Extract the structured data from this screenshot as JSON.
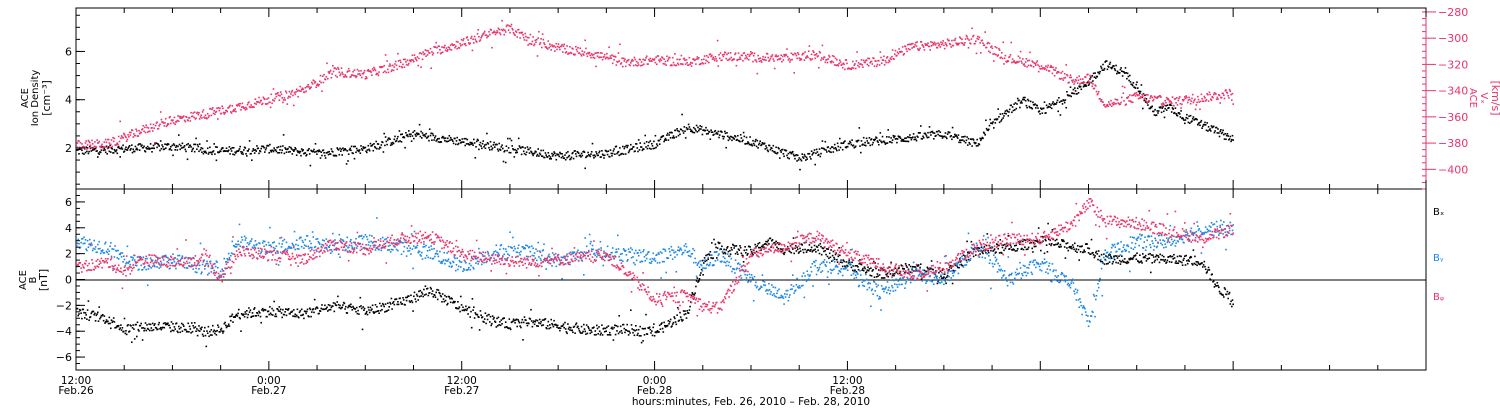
{
  "chart_data": [
    {
      "type": "scatter",
      "panel": "top",
      "left_axis": {
        "label_lines": [
          "ACE",
          "Ion Density"
        ],
        "unit": "[cm⁻³]",
        "ylim": [
          0.3,
          7.8
        ],
        "ticks": [
          2,
          4,
          6
        ],
        "color": "#000000"
      },
      "right_axis": {
        "label_lines": [
          "ACE",
          "Vₓ"
        ],
        "unit": "[km/s]",
        "ylim": [
          -415,
          -277
        ],
        "ticks": [
          -280,
          -300,
          -320,
          -340,
          -360,
          -380,
          -400
        ],
        "color": "#e8356a"
      },
      "series": [
        {
          "axis": "left",
          "color": "#000000",
          "x": [
            0,
            3,
            6,
            9,
            12,
            15,
            18,
            21,
            24,
            27,
            30,
            33,
            36,
            38,
            40,
            42,
            45,
            48,
            51,
            54,
            56,
            57,
            58,
            59,
            60,
            62,
            63,
            64,
            65,
            66,
            67,
            68,
            69,
            70,
            72
          ],
          "y": [
            1.9,
            2.0,
            2.1,
            1.9,
            2.0,
            1.8,
            2.0,
            2.6,
            2.3,
            2.0,
            1.7,
            1.8,
            2.2,
            2.9,
            2.6,
            2.3,
            1.6,
            2.2,
            2.4,
            2.6,
            2.2,
            3.0,
            3.6,
            4.0,
            3.5,
            4.3,
            4.8,
            5.5,
            5.2,
            4.6,
            3.5,
            3.7,
            3.3,
            3.0,
            2.4
          ]
        },
        {
          "axis": "right",
          "color": "#e8356a",
          "x": [
            0,
            2,
            4,
            6,
            8,
            10,
            12,
            14,
            16,
            18,
            20,
            22,
            24,
            26,
            27,
            28,
            30,
            32,
            34,
            36,
            38,
            40,
            42,
            44,
            46,
            48,
            50,
            52,
            53,
            54,
            56,
            57,
            58,
            60,
            61,
            62,
            63,
            64,
            65,
            66,
            67,
            68,
            70,
            72
          ],
          "y": [
            -381,
            -380,
            -370,
            -362,
            -357,
            -352,
            -346,
            -340,
            -325,
            -327,
            -320,
            -310,
            -303,
            -295,
            -292,
            -300,
            -307,
            -311,
            -318,
            -316,
            -318,
            -313,
            -314,
            -315,
            -312,
            -320,
            -317,
            -306,
            -305,
            -304,
            -300,
            -308,
            -315,
            -320,
            -326,
            -332,
            -330,
            -350,
            -348,
            -344,
            -346,
            -348,
            -345,
            -341
          ]
        }
      ]
    },
    {
      "type": "scatter",
      "panel": "bottom",
      "left_axis": {
        "label_lines": [
          "ACE",
          "B"
        ],
        "unit": "[nT]",
        "ylim": [
          -7,
          7
        ],
        "ticks": [
          -6,
          -4,
          -2,
          0,
          2,
          4,
          6
        ],
        "color": "#000000"
      },
      "zero_line": true,
      "series": [
        {
          "name": "Bₓ",
          "color": "#000000",
          "x": [
            0,
            2,
            3,
            4,
            6,
            8,
            9,
            10,
            12,
            14,
            16,
            18,
            20,
            22,
            24,
            26,
            27,
            28,
            30,
            32,
            34,
            36,
            38,
            39,
            40,
            42,
            43,
            44,
            46,
            48,
            50,
            52,
            54,
            56,
            57,
            58,
            60,
            62,
            63,
            64,
            66,
            68,
            70,
            71,
            72
          ],
          "y": [
            -2.5,
            -3.0,
            -3.8,
            -3.6,
            -3.6,
            -4.0,
            -3.8,
            -2.6,
            -2.4,
            -2.6,
            -2.0,
            -2.4,
            -1.8,
            -0.8,
            -2.2,
            -3.2,
            -3.4,
            -3.2,
            -3.5,
            -3.9,
            -3.8,
            -4.0,
            -2.5,
            1.5,
            2.5,
            2.2,
            3.0,
            2.4,
            2.6,
            1.2,
            0.5,
            1.0,
            0.5,
            2.3,
            2.4,
            2.5,
            3.0,
            2.6,
            2.4,
            1.6,
            1.7,
            1.6,
            1.5,
            -0.6,
            -1.5
          ]
        },
        {
          "name": "Bᵧ",
          "color": "#1e88e5",
          "x": [
            0,
            2,
            3,
            4,
            6,
            8,
            9,
            10,
            12,
            14,
            16,
            18,
            20,
            22,
            24,
            26,
            28,
            30,
            32,
            34,
            36,
            38,
            39,
            40,
            42,
            44,
            46,
            48,
            50,
            52,
            54,
            56,
            58,
            60,
            62,
            63,
            64,
            66,
            68,
            70,
            72
          ],
          "y": [
            3.0,
            2.5,
            1.6,
            1.3,
            1.5,
            1.0,
            0.8,
            3.0,
            2.4,
            3.0,
            2.6,
            3.0,
            2.6,
            2.2,
            1.0,
            2.2,
            2.2,
            1.5,
            2.2,
            2.0,
            1.8,
            2.4,
            1.0,
            2.0,
            0.0,
            -1.4,
            1.2,
            1.0,
            -1.0,
            0.5,
            0.0,
            2.5,
            0.0,
            1.4,
            -0.5,
            -3.4,
            2.0,
            3.0,
            3.0,
            4.0,
            4.0
          ]
        },
        {
          "name": "Bᵩ",
          "color": "#e8356a",
          "x": [
            0,
            2,
            3,
            4,
            6,
            8,
            9,
            10,
            12,
            14,
            16,
            18,
            20,
            22,
            24,
            26,
            28,
            30,
            32,
            33,
            34,
            36,
            38,
            39,
            40,
            42,
            44,
            46,
            48,
            50,
            52,
            54,
            56,
            58,
            60,
            62,
            63,
            64,
            66,
            68,
            70,
            72
          ],
          "y": [
            1.0,
            1.4,
            0.6,
            1.6,
            1.4,
            1.6,
            0.2,
            2.2,
            2.0,
            1.6,
            2.8,
            2.4,
            3.2,
            3.4,
            2.0,
            1.6,
            1.4,
            1.6,
            1.8,
            2.0,
            0.8,
            -1.5,
            -1.2,
            -2.0,
            -2.2,
            2.0,
            2.6,
            3.4,
            2.0,
            1.2,
            0.4,
            1.0,
            2.6,
            3.2,
            3.2,
            4.4,
            6.0,
            4.6,
            4.4,
            3.8,
            3.2,
            4.0
          ]
        }
      ],
      "legend": {
        "position": "right",
        "items": [
          "Bₓ",
          "Bᵧ",
          "Bᵩ"
        ]
      }
    }
  ],
  "x_axis": {
    "range_hours": [
      0,
      84
    ],
    "tick_labels": [
      {
        "hour": 0,
        "time": "12:00",
        "date": "Feb.26"
      },
      {
        "hour": 12,
        "time": "0:00",
        "date": "Feb.27"
      },
      {
        "hour": 24,
        "time": "12:00",
        "date": "Feb.27"
      },
      {
        "hour": 36,
        "time": "0:00",
        "date": "Feb.28"
      },
      {
        "hour": 48,
        "time": "12:00",
        "date": "Feb.28"
      }
    ],
    "title": "hours:minutes, Feb. 26, 2010 – Feb. 28, 2010"
  }
}
